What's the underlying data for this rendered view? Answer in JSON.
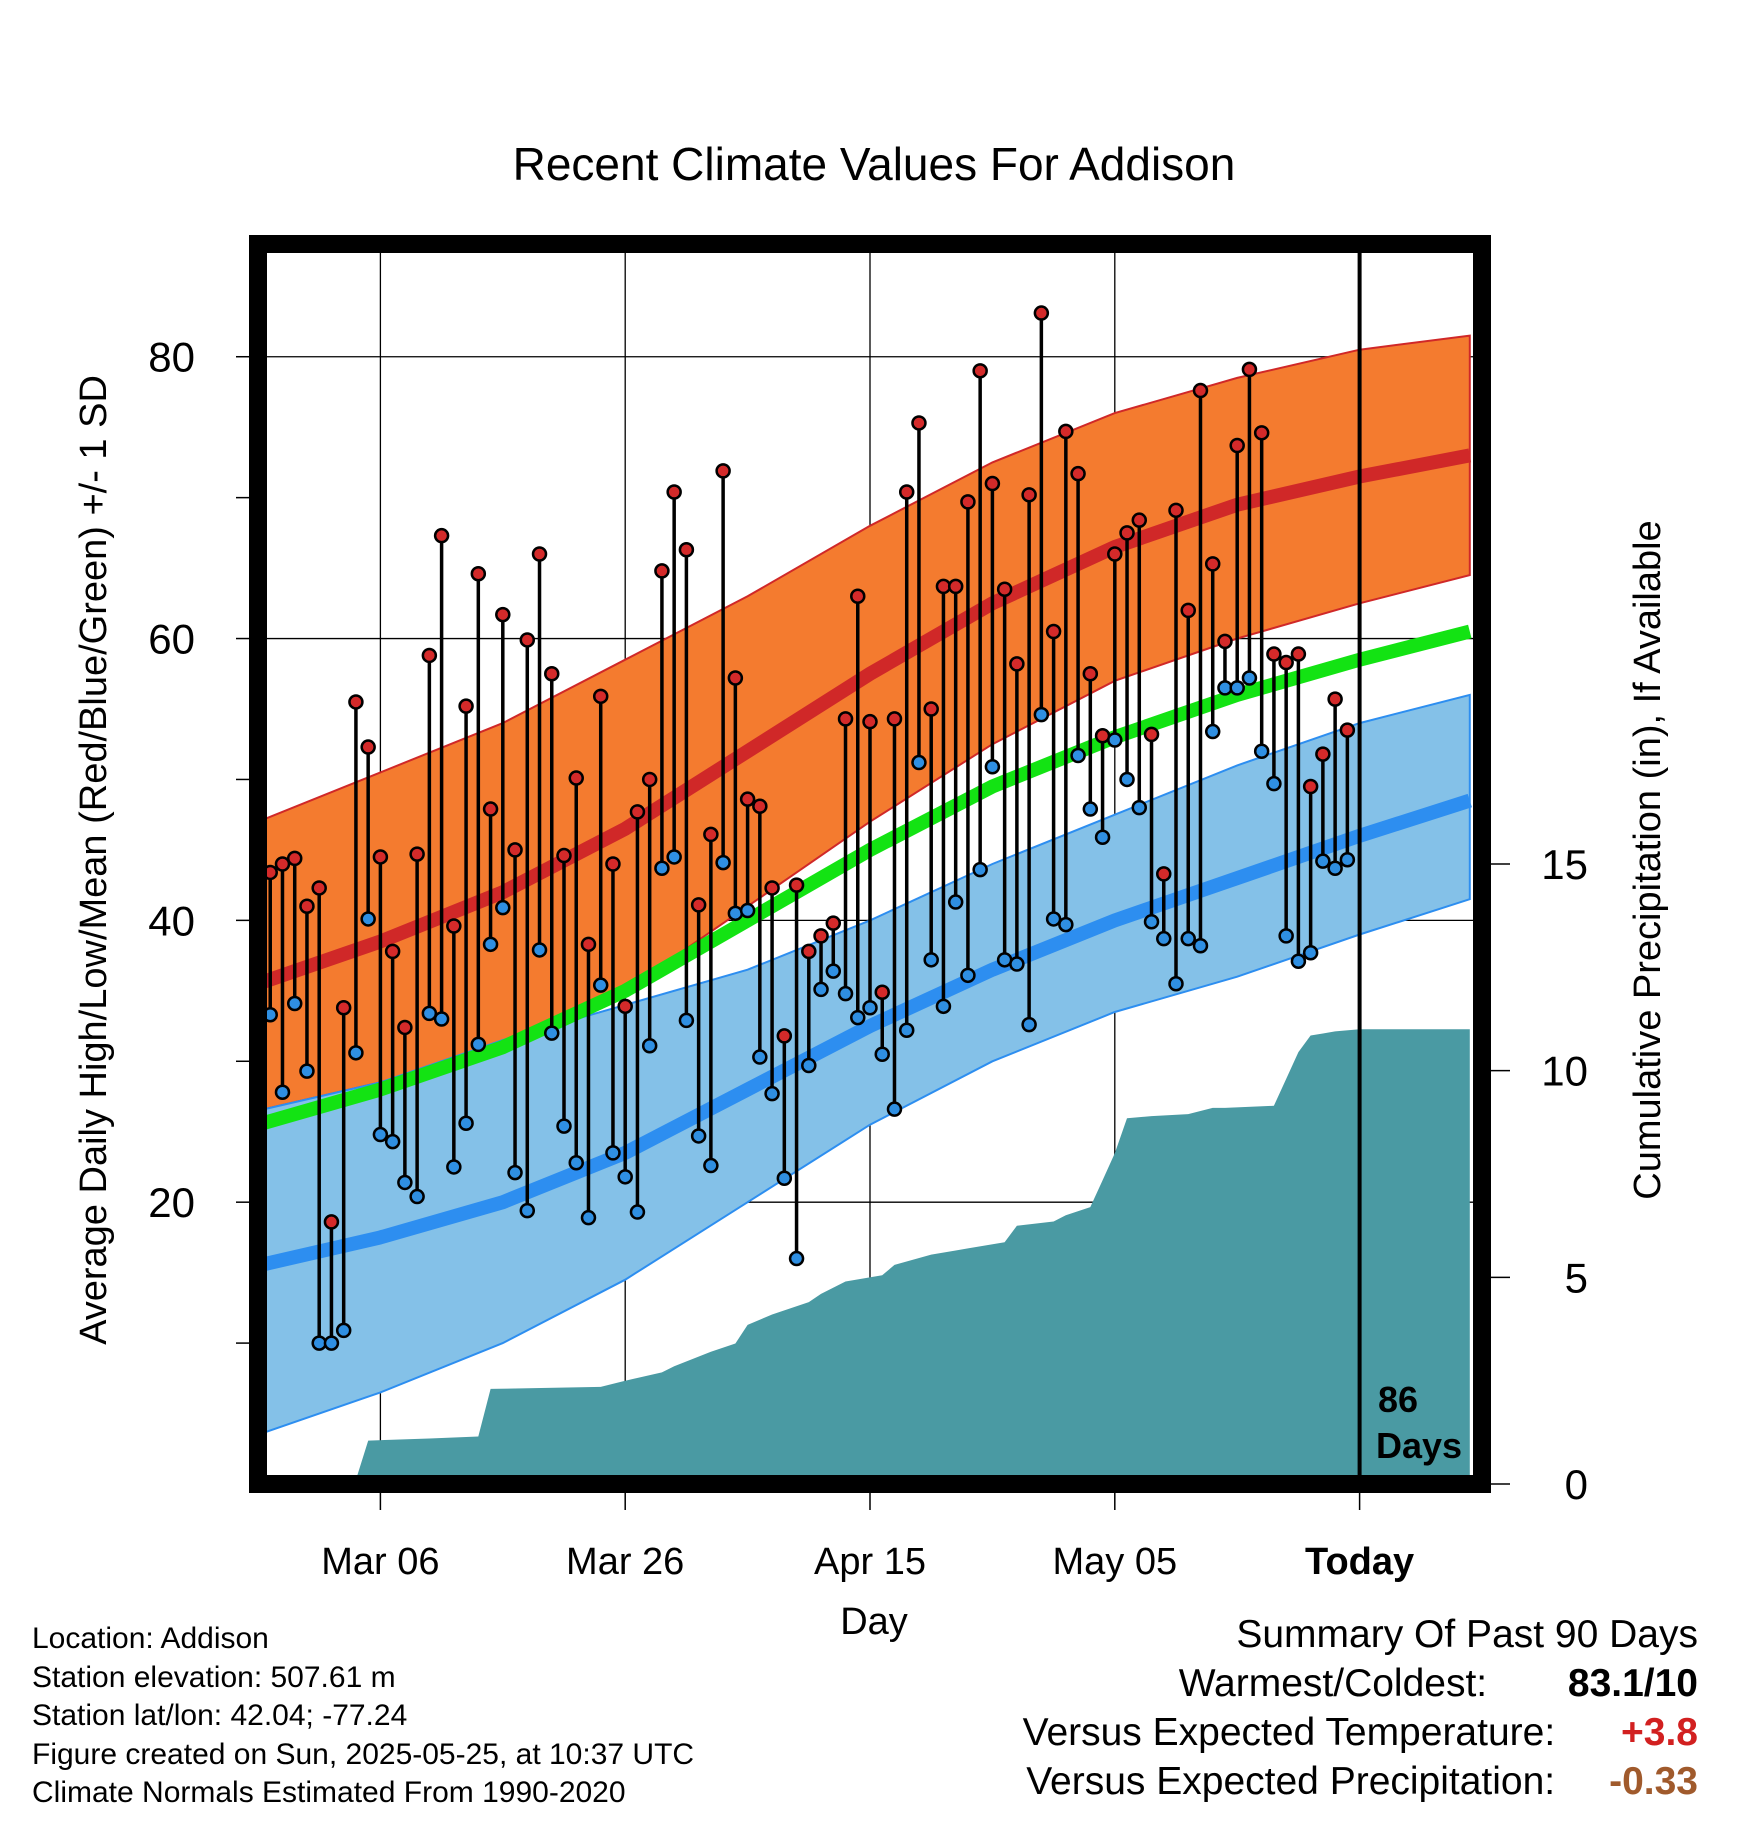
{
  "chart_data": {
    "type": "line",
    "title": "Recent Climate Values For Addison",
    "xlabel": "Day",
    "ylabel": "Average Daily High/Low/Mean (Red/Blue/Green) +/- 1 SD",
    "y2label": "Cumulative Precipitation (in), If Available",
    "x_range_days": [
      -90,
      10
    ],
    "ylim": [
      0,
      88
    ],
    "y2lim": [
      0,
      30
    ],
    "y_ticks": [
      "20",
      "40",
      "60",
      "80"
    ],
    "y2_ticks": [
      "0",
      "5",
      "10",
      "15"
    ],
    "x_ticks": [
      {
        "day": -80,
        "label": "Mar 06"
      },
      {
        "day": -60,
        "label": "Mar 26"
      },
      {
        "day": -40,
        "label": "Apr 15"
      },
      {
        "day": -20,
        "label": "May 05"
      },
      {
        "day": 0,
        "label": "Today"
      }
    ],
    "today_label": [
      "86",
      "Days"
    ],
    "normals": {
      "x": [
        -90,
        -80,
        -70,
        -60,
        -50,
        -40,
        -30,
        -20,
        -10,
        0,
        9
      ],
      "high_mean": [
        35.5,
        38.5,
        42,
        46.5,
        52,
        57.5,
        62.5,
        66.5,
        69.5,
        71.5,
        73
      ],
      "high_upper": [
        47,
        50.5,
        54,
        58.5,
        63,
        68,
        72.5,
        76,
        78.5,
        80.5,
        81.5
      ],
      "high_lower": [
        26.5,
        28.5,
        31,
        35,
        41,
        47,
        52.5,
        57,
        60,
        62.5,
        64.5
      ],
      "mean": [
        25.5,
        28,
        31,
        35,
        40,
        45,
        49.5,
        53,
        56,
        58.5,
        60.5
      ],
      "low_mean": [
        15.5,
        17.5,
        20,
        23.5,
        28,
        32.5,
        36.5,
        40,
        43,
        46,
        48.5
      ],
      "low_upper": [
        26.5,
        28.5,
        31.5,
        34,
        36.5,
        40,
        44,
        47.5,
        51,
        54,
        56
      ],
      "low_lower": [
        3.5,
        6.5,
        10,
        14.5,
        20,
        25.5,
        30,
        33.5,
        36,
        39,
        41.5
      ]
    },
    "series": [
      {
        "name": "High",
        "values": [
          43.6,
          43.4,
          44,
          44.4,
          41,
          42.3,
          18.6,
          33.8,
          55.5,
          52.3,
          44.5,
          37.8,
          32.4,
          44.7,
          58.8,
          67.3,
          39.6,
          55.2,
          64.6,
          47.9,
          61.7,
          45,
          59.9,
          66,
          57.5,
          44.6,
          50.1,
          38.3,
          55.9,
          44,
          33.9,
          47.7,
          50,
          64.8,
          70.4,
          66.3,
          41.1,
          46.1,
          71.9,
          57.2,
          48.6,
          48.1,
          42.3,
          31.8,
          42.5,
          37.8,
          38.9,
          39.8,
          54.3,
          63,
          54.1,
          34.9,
          54.3,
          70.4,
          75.3,
          55,
          63.7,
          63.7,
          69.7,
          79,
          71,
          63.5,
          58.2,
          70.2,
          83.1,
          60.5,
          74.7,
          71.7,
          57.5,
          53.1,
          66,
          67.5,
          68.4,
          53.2,
          43.3,
          69.1,
          62,
          77.6,
          65.3,
          59.8,
          73.7,
          79.1,
          74.6,
          58.9,
          58.3,
          58.9,
          49.5,
          51.8,
          55.7,
          53.5
        ]
      },
      {
        "name": "Low",
        "values": [
          25.5,
          33.3,
          27.8,
          34.1,
          29.3,
          10,
          10,
          10.9,
          30.6,
          40.1,
          24.8,
          24.3,
          21.4,
          20.4,
          33.4,
          33,
          22.5,
          25.6,
          31.2,
          38.3,
          40.9,
          22.1,
          19.4,
          37.9,
          32,
          25.4,
          22.8,
          18.9,
          35.4,
          23.5,
          21.8,
          19.3,
          31.1,
          43.7,
          44.5,
          32.9,
          24.7,
          22.6,
          44.1,
          40.5,
          40.7,
          30.3,
          27.7,
          21.7,
          16,
          29.7,
          35.1,
          36.4,
          34.8,
          33.1,
          33.8,
          30.5,
          26.6,
          32.2,
          51.2,
          37.2,
          33.9,
          41.3,
          36.1,
          43.6,
          50.9,
          37.2,
          36.9,
          32.6,
          54.6,
          40.1,
          39.7,
          51.7,
          47.9,
          45.9,
          52.8,
          50,
          48,
          39.9,
          38.7,
          35.5,
          38.7,
          38.2,
          53.4,
          56.5,
          56.5,
          57.2,
          52,
          49.7,
          38.9,
          37.1,
          37.7,
          44.2,
          43.7,
          44.3
        ]
      }
    ],
    "precip": {
      "x": [
        -90,
        -86,
        -82,
        -81,
        -76,
        -72,
        -71,
        -62,
        -60,
        -57,
        -56,
        -53,
        -51,
        -50,
        -48,
        -45,
        -44,
        -42,
        -39,
        -38,
        -35,
        -33,
        -32,
        -29,
        -28,
        -25,
        -24,
        -22,
        -21,
        -20,
        -19,
        -17,
        -14,
        -12,
        -11,
        -7,
        -6,
        -5,
        -4,
        -3,
        -2,
        0,
        9
      ],
      "cum": [
        0,
        0,
        0.1,
        1.05,
        1.1,
        1.15,
        2.3,
        2.35,
        2.5,
        2.7,
        2.85,
        3.2,
        3.4,
        3.85,
        4.1,
        4.4,
        4.6,
        4.9,
        5.05,
        5.3,
        5.55,
        5.65,
        5.7,
        5.85,
        6.25,
        6.35,
        6.5,
        6.7,
        7.35,
        8,
        8.85,
        8.9,
        8.95,
        9.1,
        9.1,
        9.15,
        9.8,
        10.45,
        10.85,
        10.9,
        10.95,
        11,
        11
      ]
    }
  },
  "info": {
    "location": "Location: Addison",
    "elevation": "Station elevation: 507.61 m",
    "latlon": "Station lat/lon: 42.04; -77.24",
    "created": "Figure created on Sun, 2025-05-25, at 10:37 UTC",
    "normals": "Climate Normals Estimated From 1990-2020"
  },
  "summary": {
    "title": "Summary Of Past 90 Days",
    "warm_label": "Warmest/Coldest:",
    "warm_value": "83.1/10",
    "temp_label": "Versus Expected Temperature:",
    "temp_value": "+3.8",
    "precip_label": "Versus Expected Precipitation:",
    "precip_value": "-0.33"
  },
  "colors": {
    "high_band": "#f47b2f",
    "high_line": "#d02828",
    "low_band": "#84c1e8",
    "low_line": "#2d8ef0",
    "mean_line": "#13e313",
    "precip_fill": "#4a9aa3",
    "high_dot": "#d42a2a",
    "low_dot": "#2f8fe2",
    "temp_value": "#d22020",
    "precip_value": "#a05a2c"
  }
}
